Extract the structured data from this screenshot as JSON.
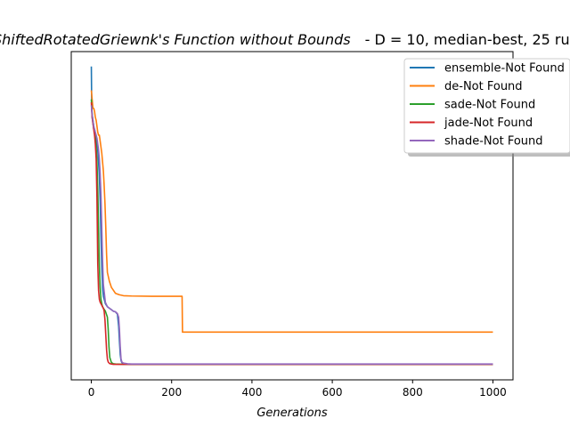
{
  "chart_data": {
    "type": "line",
    "title_main": "ShiftedRotatedGriewnk's Function without Bounds",
    "title_rest": "- D = 10, median-best, 25 ru",
    "xlabel": "Generations",
    "ylabel": "",
    "xlim": [
      -50,
      1050
    ],
    "ylim": [
      -0.5,
      10.5
    ],
    "xticks": [
      0,
      200,
      400,
      600,
      800,
      1000
    ],
    "yticks_shown": false,
    "legend_position": "top-right",
    "series": [
      {
        "name": "ensemble-Not Found",
        "color": "#1f77b4",
        "x": [
          0,
          1,
          2,
          4,
          6,
          8,
          10,
          12,
          14,
          16,
          18,
          20,
          22,
          24,
          26,
          28,
          30,
          35,
          40,
          45,
          50,
          55,
          60,
          65,
          68,
          70,
          72,
          74,
          76,
          80,
          90,
          100,
          150,
          300,
          600,
          1000
        ],
        "y": [
          10.0,
          8.6,
          8.3,
          8.1,
          7.9,
          7.9,
          7.7,
          7.6,
          7.4,
          7.2,
          6.8,
          6.3,
          5.5,
          4.3,
          3.3,
          2.6,
          2.3,
          2.05,
          1.95,
          1.9,
          1.85,
          1.8,
          1.78,
          1.7,
          1.3,
          0.8,
          0.35,
          0.15,
          0.08,
          0.05,
          0.03,
          0.02,
          0.02,
          0.02,
          0.02,
          0.02
        ]
      },
      {
        "name": "de-Not Found",
        "color": "#ff7f0e",
        "x": [
          0,
          2,
          4,
          6,
          8,
          10,
          12,
          14,
          16,
          18,
          20,
          22,
          24,
          26,
          28,
          30,
          32,
          34,
          36,
          38,
          40,
          45,
          50,
          55,
          60,
          70,
          80,
          100,
          150,
          200,
          226,
          227,
          230,
          400,
          700,
          1000
        ],
        "y": [
          9.2,
          8.9,
          8.6,
          8.6,
          8.5,
          8.3,
          8.2,
          8.0,
          7.8,
          7.7,
          7.7,
          7.5,
          7.3,
          7.1,
          6.8,
          6.5,
          6.0,
          5.4,
          4.6,
          3.7,
          3.1,
          2.8,
          2.6,
          2.5,
          2.4,
          2.35,
          2.32,
          2.31,
          2.3,
          2.3,
          2.3,
          1.1,
          1.1,
          1.1,
          1.1,
          1.1
        ]
      },
      {
        "name": "sade-Not Found",
        "color": "#2ca02c",
        "x": [
          0,
          2,
          4,
          6,
          8,
          10,
          12,
          14,
          16,
          18,
          20,
          22,
          24,
          26,
          28,
          30,
          35,
          40,
          42,
          44,
          46,
          50,
          55,
          60,
          80,
          100,
          200,
          500,
          1000
        ],
        "y": [
          8.9,
          8.4,
          8.2,
          8.0,
          7.8,
          7.6,
          7.3,
          6.8,
          5.9,
          4.6,
          3.3,
          2.6,
          2.2,
          2.05,
          1.95,
          1.9,
          1.8,
          1.6,
          1.2,
          0.6,
          0.25,
          0.08,
          0.04,
          0.03,
          0.02,
          0.02,
          0.02,
          0.02,
          0.02
        ]
      },
      {
        "name": "jade-Not Found",
        "color": "#d62728",
        "x": [
          0,
          2,
          4,
          6,
          8,
          10,
          12,
          14,
          16,
          18,
          20,
          22,
          24,
          26,
          28,
          30,
          32,
          34,
          36,
          38,
          40,
          42,
          45,
          50,
          55,
          60,
          80,
          100,
          200,
          500,
          1000
        ],
        "y": [
          8.8,
          8.3,
          8.1,
          7.9,
          7.7,
          7.4,
          6.9,
          5.6,
          3.4,
          2.5,
          2.2,
          2.1,
          2.05,
          2.0,
          1.95,
          1.9,
          1.8,
          1.5,
          1.0,
          0.5,
          0.2,
          0.1,
          0.05,
          0.03,
          0.02,
          0.02,
          0.02,
          0.02,
          0.02,
          0.02,
          0.02
        ]
      },
      {
        "name": "shade-Not Found",
        "color": "#9467bd",
        "x": [
          0,
          2,
          4,
          6,
          8,
          10,
          12,
          14,
          16,
          18,
          20,
          22,
          24,
          26,
          28,
          30,
          35,
          40,
          45,
          50,
          55,
          60,
          65,
          68,
          70,
          72,
          74,
          76,
          80,
          90,
          100,
          200,
          500,
          1000
        ],
        "y": [
          8.7,
          8.4,
          8.2,
          8.0,
          7.9,
          7.8,
          7.7,
          7.6,
          7.4,
          7.2,
          6.9,
          6.4,
          5.7,
          4.6,
          3.5,
          2.7,
          2.1,
          1.95,
          1.9,
          1.85,
          1.8,
          1.78,
          1.72,
          1.6,
          1.2,
          0.6,
          0.2,
          0.1,
          0.06,
          0.04,
          0.03,
          0.03,
          0.03,
          0.03
        ]
      }
    ]
  }
}
